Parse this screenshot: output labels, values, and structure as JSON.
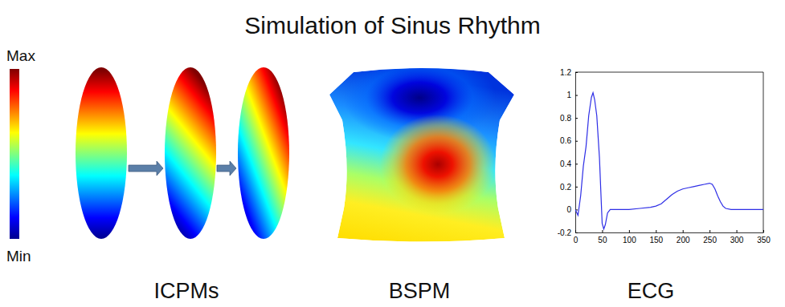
{
  "title": "Simulation of Sinus Rhythm",
  "colorbar": {
    "max_label": "Max",
    "min_label": "Min"
  },
  "panels": [
    "ICPMs",
    "BSPM",
    "ECG"
  ],
  "chart_data": {
    "type": "line",
    "x": [
      0,
      5,
      10,
      15,
      20,
      25,
      30,
      33,
      36,
      40,
      45,
      50,
      53,
      56,
      60,
      65,
      80,
      100,
      120,
      140,
      150,
      160,
      170,
      180,
      190,
      200,
      210,
      220,
      230,
      240,
      250,
      255,
      260,
      265,
      270,
      275,
      280,
      290,
      300,
      320,
      340,
      350
    ],
    "values": [
      0,
      -0.05,
      0.12,
      0.38,
      0.55,
      0.82,
      0.98,
      1.02,
      0.96,
      0.82,
      0.45,
      -0.12,
      -0.17,
      -0.13,
      -0.03,
      0,
      0,
      0,
      0.01,
      0.02,
      0.03,
      0.05,
      0.09,
      0.13,
      0.16,
      0.18,
      0.19,
      0.2,
      0.21,
      0.22,
      0.23,
      0.22,
      0.18,
      0.12,
      0.07,
      0.03,
      0.01,
      0,
      0,
      0,
      0,
      0
    ],
    "color": "#2e2ee6",
    "xlim": [
      0,
      350
    ],
    "ylim": [
      -0.2,
      1.2
    ],
    "xticks": [
      0,
      50,
      100,
      150,
      200,
      250,
      300,
      350
    ],
    "yticks": [
      -0.2,
      0,
      0.2,
      0.4,
      0.6,
      0.8,
      1,
      1.2
    ],
    "grid": false
  }
}
